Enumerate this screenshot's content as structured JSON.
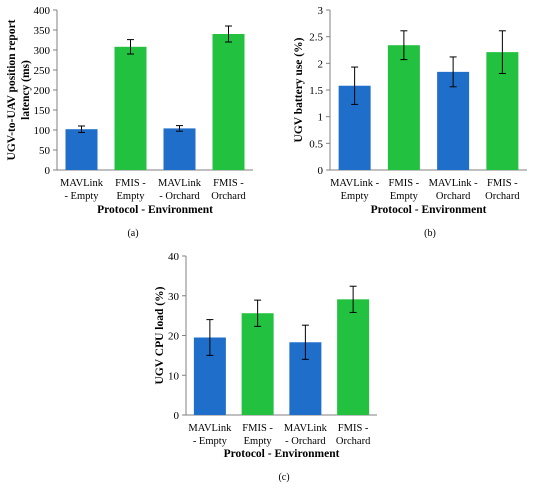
{
  "colors": {
    "mavlink": "#1f6fca",
    "fmis": "#22c13f"
  },
  "chart_data": [
    {
      "type": "bar",
      "panel_label": "(a)",
      "categories": [
        [
          "MAVLink",
          "- Empty"
        ],
        [
          "FMIS -",
          "Empty"
        ],
        [
          "MAVLink",
          "- Orchard"
        ],
        [
          "FMIS -",
          "Orchard"
        ]
      ],
      "values": [
        102,
        308,
        104,
        340
      ],
      "errors": [
        8,
        18,
        7,
        20
      ],
      "bar_colors": [
        "mavlink",
        "fmis",
        "mavlink",
        "fmis"
      ],
      "xlabel": "Protocol - Environment",
      "ylabel": [
        "UGV-to-UAV position report",
        "latency (ms)"
      ],
      "ylim": [
        0,
        400
      ],
      "yticks": [
        "0",
        "50",
        "100",
        "150",
        "200",
        "250",
        "300",
        "350",
        "400"
      ],
      "grid": false,
      "legend": "none"
    },
    {
      "type": "bar",
      "panel_label": "(b)",
      "categories": [
        [
          "MAVLink -",
          "Empty"
        ],
        [
          "FMIS -",
          "Empty"
        ],
        [
          "MAVLink -",
          "Orchard"
        ],
        [
          "FMIS -",
          "Orchard"
        ]
      ],
      "values": [
        1.58,
        2.34,
        1.84,
        2.21
      ],
      "errors": [
        0.35,
        0.27,
        0.28,
        0.4
      ],
      "bar_colors": [
        "mavlink",
        "fmis",
        "mavlink",
        "fmis"
      ],
      "xlabel": "Protocol - Environment",
      "ylabel": [
        "UGV battery use (%)"
      ],
      "ylim": [
        0,
        3
      ],
      "yticks": [
        "0",
        "0.5",
        "1",
        "1.5",
        "2",
        "2.5",
        "3"
      ],
      "grid": false,
      "legend": "none"
    },
    {
      "type": "bar",
      "panel_label": "(c)",
      "categories": [
        [
          "MAVLink",
          "- Empty"
        ],
        [
          "FMIS -",
          "Empty"
        ],
        [
          "MAVLink",
          "- Orchard"
        ],
        [
          "FMIS -",
          "Orchard"
        ]
      ],
      "values": [
        19.5,
        25.6,
        18.3,
        29.1
      ],
      "errors": [
        4.5,
        3.3,
        4.3,
        3.3
      ],
      "bar_colors": [
        "mavlink",
        "fmis",
        "mavlink",
        "fmis"
      ],
      "xlabel": "Protocol - Environment",
      "ylabel": [
        "UGV CPU load (%)"
      ],
      "ylim": [
        0,
        40
      ],
      "yticks": [
        "0",
        "10",
        "20",
        "30",
        "40"
      ],
      "grid": false,
      "legend": "none"
    }
  ]
}
